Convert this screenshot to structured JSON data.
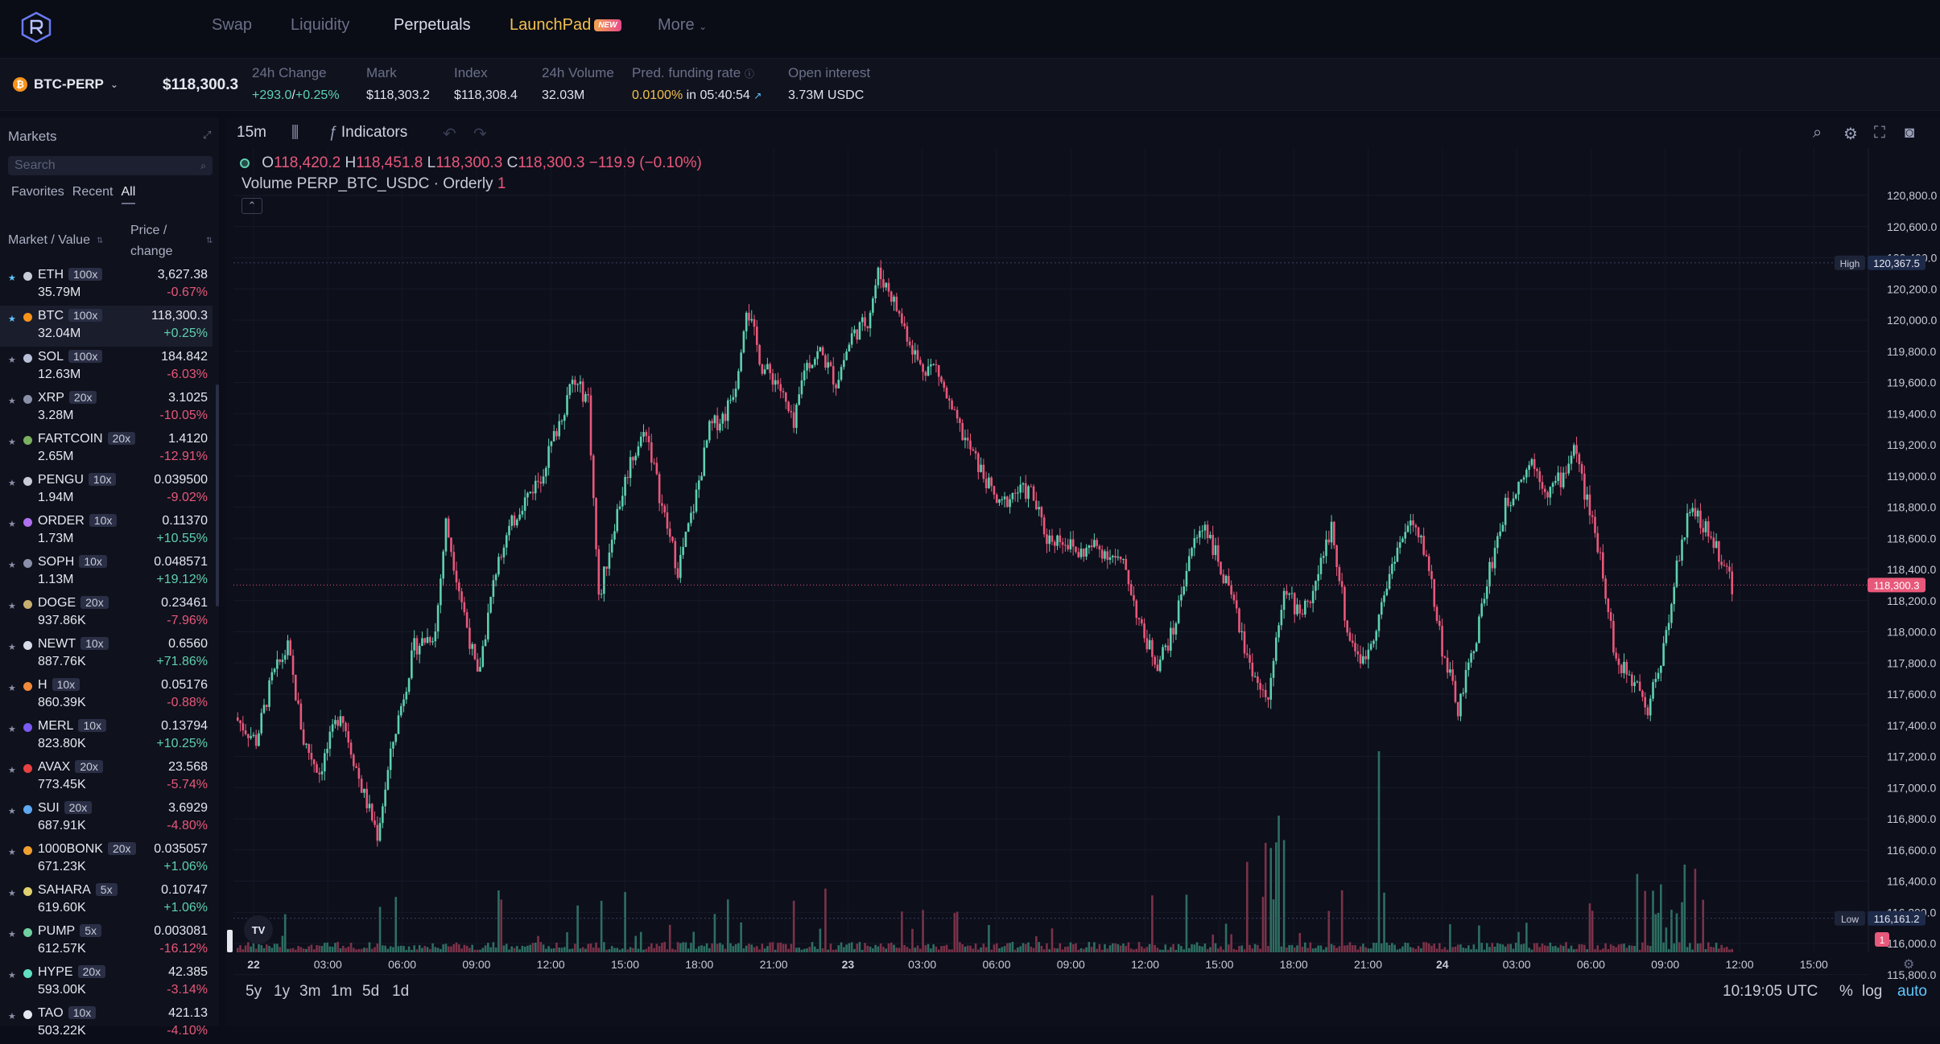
{
  "nav": {
    "items": [
      "Swap",
      "Liquidity",
      "Perpetuals",
      "LaunchPad",
      "More"
    ],
    "new_badge": "NEW"
  },
  "ticker": {
    "symbol": "BTC-PERP",
    "coin_glyph": "₿",
    "last_price": "$118,300.3",
    "change_label": "24h Change",
    "change_abs": "+293.0",
    "change_sep": "/",
    "change_pct": "+0.25%",
    "mark_label": "Mark",
    "mark": "$118,303.2",
    "index_label": "Index",
    "index": "$118,308.4",
    "volume_label": "24h Volume",
    "volume": "32.03M",
    "funding_label": "Pred. funding rate",
    "funding_rate": "0.0100%",
    "funding_in": "in 05:40:54",
    "oi_label": "Open interest",
    "oi": "3.73M USDC"
  },
  "sidebar": {
    "title": "Markets",
    "search_placeholder": "Search",
    "tabs": [
      "Favorites",
      "Recent",
      "All"
    ],
    "col1": "Market / Value",
    "col2a": "Price /",
    "col2b": "change",
    "markets": [
      {
        "name": "ETH",
        "lev": "100x",
        "vol": "35.79M",
        "price": "3,627.38",
        "chg": "-0.67%",
        "up": false,
        "fav": true,
        "color": "#c8ccd8"
      },
      {
        "name": "BTC",
        "lev": "100x",
        "vol": "32.04M",
        "price": "118,300.3",
        "chg": "+0.25%",
        "up": true,
        "fav": true,
        "color": "#f7931a"
      },
      {
        "name": "SOL",
        "lev": "100x",
        "vol": "12.63M",
        "price": "184.842",
        "chg": "-6.03%",
        "up": false,
        "fav": false,
        "color": "#b8c0d8"
      },
      {
        "name": "XRP",
        "lev": "20x",
        "vol": "3.28M",
        "price": "3.1025",
        "chg": "-10.05%",
        "up": false,
        "fav": false,
        "color": "#8a90a8"
      },
      {
        "name": "FARTCOIN",
        "lev": "20x",
        "vol": "2.65M",
        "price": "1.4120",
        "chg": "-12.91%",
        "up": false,
        "fav": false,
        "color": "#7ab060"
      },
      {
        "name": "PENGU",
        "lev": "10x",
        "vol": "1.94M",
        "price": "0.039500",
        "chg": "-9.02%",
        "up": false,
        "fav": false,
        "color": "#c8ccd8"
      },
      {
        "name": "ORDER",
        "lev": "10x",
        "vol": "1.73M",
        "price": "0.11370",
        "chg": "+10.55%",
        "up": true,
        "fav": false,
        "color": "#b070f0"
      },
      {
        "name": "SOPH",
        "lev": "10x",
        "vol": "1.13M",
        "price": "0.048571",
        "chg": "+19.12%",
        "up": true,
        "fav": false,
        "color": "#8a90a8"
      },
      {
        "name": "DOGE",
        "lev": "20x",
        "vol": "937.86K",
        "price": "0.23461",
        "chg": "-7.96%",
        "up": false,
        "fav": false,
        "color": "#c8b070"
      },
      {
        "name": "NEWT",
        "lev": "10x",
        "vol": "887.76K",
        "price": "0.6560",
        "chg": "+71.86%",
        "up": true,
        "fav": false,
        "color": "#d8dcea"
      },
      {
        "name": "H",
        "lev": "10x",
        "vol": "860.39K",
        "price": "0.05176",
        "chg": "-0.88%",
        "up": false,
        "fav": false,
        "color": "#f08a3a"
      },
      {
        "name": "MERL",
        "lev": "10x",
        "vol": "823.80K",
        "price": "0.13794",
        "chg": "+10.25%",
        "up": true,
        "fav": false,
        "color": "#7a5af0"
      },
      {
        "name": "AVAX",
        "lev": "20x",
        "vol": "773.45K",
        "price": "23.568",
        "chg": "-5.74%",
        "up": false,
        "fav": false,
        "color": "#e84142"
      },
      {
        "name": "SUI",
        "lev": "20x",
        "vol": "687.91K",
        "price": "3.6929",
        "chg": "-4.80%",
        "up": false,
        "fav": false,
        "color": "#5ea8f0"
      },
      {
        "name": "1000BONK",
        "lev": "20x",
        "vol": "671.23K",
        "price": "0.035057",
        "chg": "+1.06%",
        "up": true,
        "fav": false,
        "color": "#f0a030"
      },
      {
        "name": "SAHARA",
        "lev": "5x",
        "vol": "619.60K",
        "price": "0.10747",
        "chg": "+1.06%",
        "up": true,
        "fav": false,
        "color": "#e0d070"
      },
      {
        "name": "PUMP",
        "lev": "5x",
        "vol": "612.57K",
        "price": "0.003081",
        "chg": "-16.12%",
        "up": false,
        "fav": false,
        "color": "#70d0a0"
      },
      {
        "name": "HYPE",
        "lev": "20x",
        "vol": "593.00K",
        "price": "42.385",
        "chg": "-3.14%",
        "up": false,
        "fav": false,
        "color": "#60e0c0"
      },
      {
        "name": "TAO",
        "lev": "10x",
        "vol": "503.22K",
        "price": "421.13",
        "chg": "-4.10%",
        "up": false,
        "fav": false,
        "color": "#e6e8f0"
      }
    ]
  },
  "chart": {
    "interval": "15m",
    "indicators_label": "Indicators",
    "ohlc": {
      "o_label": "O",
      "o": "118,420.2",
      "h_label": "H",
      "h": "118,451.8",
      "l_label": "L",
      "l": "118,300.3",
      "c_label": "C",
      "c": "118,300.3",
      "chg": "−119.9 (−0.10%)"
    },
    "volume_legend": "Volume PERP_BTC_USDC · Orderly",
    "volume_value": "1",
    "collapse_glyph": "⌃",
    "tv_logo": "TV",
    "price_ticks": [
      "120,800.0",
      "120,600.0",
      "120,400.0",
      "120,200.0",
      "120,000.0",
      "119,800.0",
      "119,600.0",
      "119,400.0",
      "119,200.0",
      "119,000.0",
      "118,800.0",
      "118,600.0",
      "118,400.0",
      "118,200.0",
      "118,000.0",
      "117,800.0",
      "117,600.0",
      "117,400.0",
      "117,200.0",
      "117,000.0",
      "116,800.0",
      "116,600.0",
      "116,400.0",
      "116,200.0",
      "116,000.0",
      "115,800.0"
    ],
    "price_values": [
      120800,
      120600,
      120400,
      120200,
      120000,
      119800,
      119600,
      119400,
      119200,
      119000,
      118800,
      118600,
      118400,
      118200,
      118000,
      117800,
      117600,
      117400,
      117200,
      117000,
      116800,
      116600,
      116400,
      116200,
      116000,
      115800
    ],
    "high_label": "High",
    "high_value": "120,367.5",
    "low_label": "Low",
    "low_value": "116,161.2",
    "last_value": "118,300.3",
    "vol_badge": "1",
    "time_ticks": [
      "22",
      "03:00",
      "06:00",
      "09:00",
      "12:00",
      "15:00",
      "18:00",
      "21:00",
      "23",
      "03:00",
      "06:00",
      "09:00",
      "12:00",
      "15:00",
      "18:00",
      "21:00",
      "24",
      "03:00",
      "06:00",
      "09:00",
      "12:00",
      "15:00"
    ],
    "time_bold": [
      true,
      false,
      false,
      false,
      false,
      false,
      false,
      false,
      true,
      false,
      false,
      false,
      false,
      false,
      false,
      false,
      true,
      false,
      false,
      false,
      false,
      false
    ],
    "ranges": [
      "5y",
      "1y",
      "3m",
      "1m",
      "5d",
      "1d"
    ],
    "clock": "10:19:05 UTC",
    "pct_label": "%",
    "log_label": "log",
    "auto_label": "auto"
  }
}
